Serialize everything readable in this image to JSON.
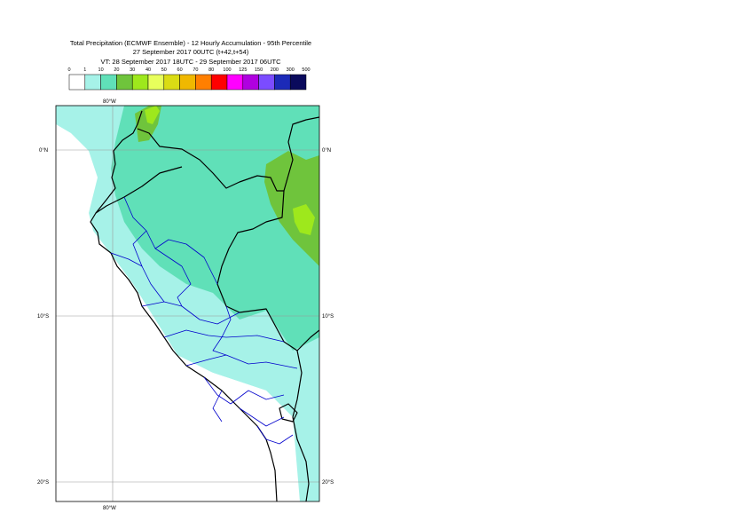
{
  "header": {
    "title_line1": "Total Precipitation (ECMWF Ensemble) - 12 Hourly Accumulation - 95th Percentile",
    "title_line2": "27 September 2017 00UTC (t+42,t+54)",
    "title_line3": "VT: 28 September 2017 18UTC - 29 September 2017 06UTC"
  },
  "legend": {
    "thresholds": [
      "0",
      "1",
      "10",
      "20",
      "30",
      "40",
      "50",
      "60",
      "70",
      "80",
      "100",
      "125",
      "150",
      "200",
      "300",
      "500"
    ],
    "colors": [
      "#ffffff",
      "#a6f2e8",
      "#60e0b8",
      "#6fc43c",
      "#9ee81c",
      "#e8ff5c",
      "#dadc14",
      "#f0b800",
      "#ff7f00",
      "#ff0000",
      "#ff00ff",
      "#b000e0",
      "#7b4cff",
      "#1c2ab8",
      "#0a0a5c"
    ]
  },
  "map": {
    "lat_labels_left": [
      "0°N",
      "10°S",
      "20°S"
    ],
    "lat_labels_right": [
      "0°N",
      "10°S",
      "20°S"
    ],
    "lon_label_top": "80°W",
    "lon_label_bottom": "80°W",
    "colors": {
      "ocean_light": "#a6f2e8",
      "land_medium": "#60e0b8",
      "heavy": "#6fc43c",
      "heaviest": "#9ee81c",
      "country_border": "#000000",
      "admin_border": "#0000cc",
      "grid": "#9a9a9a"
    }
  }
}
